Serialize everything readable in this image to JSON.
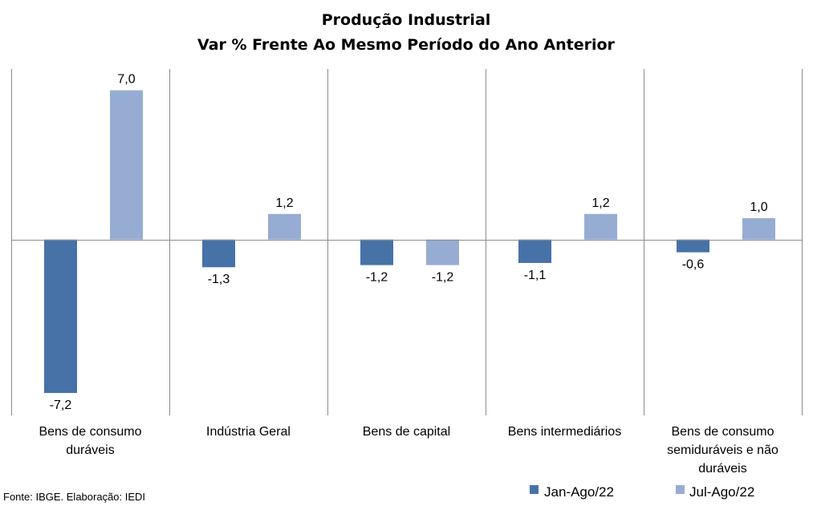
{
  "chart_data": {
    "type": "bar",
    "title": "Produção Industrial",
    "subtitle": "Var % Frente Ao Mesmo Período do Ano Anterior",
    "categories": [
      [
        "Bens de consumo",
        "duráveis"
      ],
      [
        "Indústria Geral"
      ],
      [
        "Bens de capital"
      ],
      [
        "Bens intermediários"
      ],
      [
        "Bens de consumo",
        "semiduráveis e não",
        "duráveis"
      ]
    ],
    "series": [
      {
        "name": "Jan-Ago/22",
        "color": "#4672A8",
        "values": [
          -7.2,
          -1.3,
          -1.2,
          -1.1,
          -0.6
        ],
        "labels": [
          "-7,2",
          "-1,3",
          "-1,2",
          "-1,1",
          "-0,6"
        ]
      },
      {
        "name": "Jul-Ago/22",
        "color": "#97ACD3",
        "values": [
          7.0,
          1.2,
          -1.2,
          1.2,
          1.0
        ],
        "labels": [
          "7,0",
          "1,2",
          "-1,2",
          "1,2",
          "1,0"
        ]
      }
    ],
    "ylim": [
      -8.25,
      8.0
    ],
    "grid": false,
    "category_dividers": true,
    "legend_position": "bottom-right"
  },
  "source": "Fonte: IBGE. Elaboração: IEDI"
}
